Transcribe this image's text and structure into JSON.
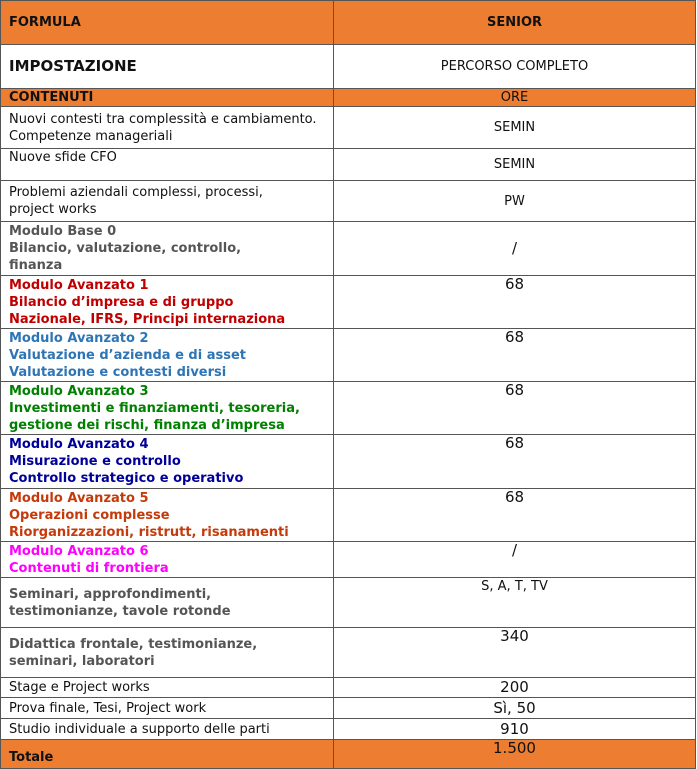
{
  "header": {
    "col1": "FORMULA",
    "col2": "SENIOR"
  },
  "impostazione": {
    "label": "IMPOSTAZIONE",
    "value": "PERCORSO COMPLETO"
  },
  "contenuti": {
    "label": "CONTENUTI",
    "value": "ORE"
  },
  "colors": {
    "orange": "#ED7D31",
    "base": "#555555",
    "mod1": "#C00000",
    "mod2": "#2E75B6",
    "mod3": "#008000",
    "mod4": "#000099",
    "mod5": "#C53A0A",
    "mod6": "#FF00FF"
  },
  "rows": [
    {
      "lines": [
        "Nuovi contesti tra complessità e cambiamento.",
        "Competenze manageriali"
      ],
      "value": "SEMIN"
    },
    {
      "lines": [
        "Nuove sfide CFO"
      ],
      "value": "SEMIN"
    },
    {
      "lines": [
        "Problemi aziendali complessi, processi,",
        "project works"
      ],
      "value": "PW"
    },
    {
      "lines": [
        "Modulo Base 0",
        "Bilancio, valutazione, controllo,",
        "finanza"
      ],
      "value": "/"
    },
    {
      "lines": [
        "Modulo Avanzato 1",
        "Bilancio d’impresa e di gruppo",
        "Nazionale, IFRS, Principi internaziona"
      ],
      "value": "68"
    },
    {
      "lines": [
        "Modulo Avanzato 2",
        "Valutazione d’azienda e di asset",
        "Valutazione e contesti diversi"
      ],
      "value": "68"
    },
    {
      "lines": [
        "Modulo Avanzato 3",
        "Investimenti e finanziamenti, tesoreria,",
        "gestione dei rischi, finanza d’impresa"
      ],
      "value": "68"
    },
    {
      "lines": [
        "Modulo Avanzato 4",
        "Misurazione e controllo",
        "Controllo strategico e operativo"
      ],
      "value": "68"
    },
    {
      "lines": [
        "Modulo Avanzato 5",
        "Operazioni complesse",
        "Riorganizzazioni, ristrutt, risanamenti"
      ],
      "value": "68"
    },
    {
      "lines": [
        "Modulo Avanzato 6",
        "Contenuti di frontiera"
      ],
      "value": "/"
    },
    {
      "lines": [
        "Seminari, approfondimenti,",
        "testimonianze, tavole rotonde"
      ],
      "value": "S, A, T, TV"
    },
    {
      "lines": [
        "Didattica frontale, testimonianze,",
        "seminari, laboratori"
      ],
      "value": "340"
    },
    {
      "lines": [
        "Stage e Project works"
      ],
      "value": "200"
    },
    {
      "lines": [
        "Prova finale, Tesi, Project work"
      ],
      "value": "Sì, 50"
    },
    {
      "lines": [
        "Studio individuale a supporto delle parti"
      ],
      "value": "910"
    }
  ],
  "total": {
    "label": "Totale",
    "value": "1.500"
  }
}
